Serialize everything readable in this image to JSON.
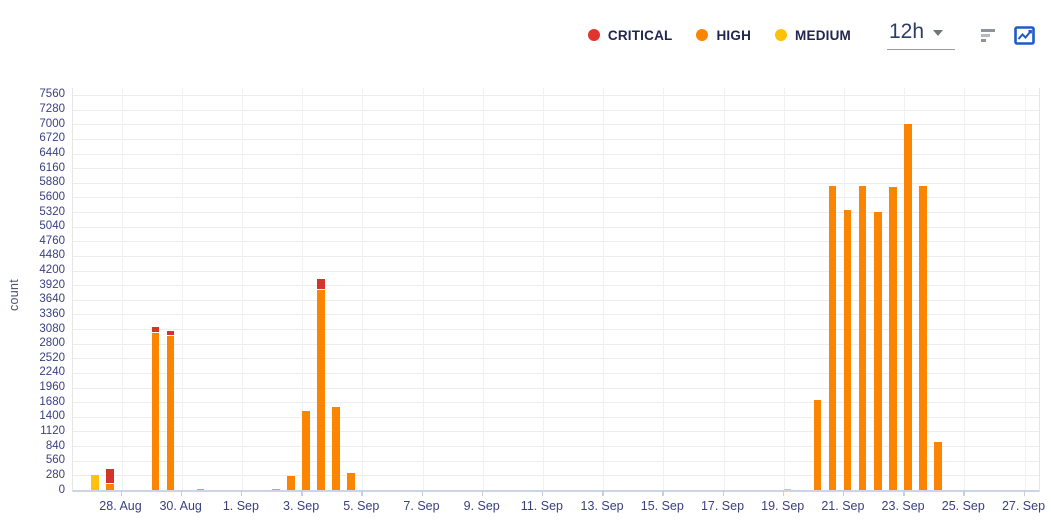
{
  "legend": {
    "items": [
      {
        "id": "critical",
        "label": "CRITICAL",
        "color": "#e0352c"
      },
      {
        "id": "high",
        "label": "HIGH",
        "color": "#fb8500"
      },
      {
        "id": "medium",
        "label": "MEDIUM",
        "color": "#fdc107"
      }
    ]
  },
  "controls": {
    "interval": "12h",
    "icons": [
      "horizontal-bars-icon",
      "line-chart-icon"
    ],
    "line_chart_icon_color": "#1b5cc7"
  },
  "colors": {
    "critical": "#d6332e",
    "high": "#fb8500",
    "medium": "#fec20d"
  },
  "chart_data": {
    "type": "bar",
    "stacked": true,
    "title": "",
    "xlabel": "",
    "ylabel": "count",
    "ylim": [
      0,
      7560
    ],
    "ytick_step": 280,
    "grid": true,
    "legend_position": "top-right",
    "interval": "12h",
    "xtick_labels": [
      "28. Aug",
      "30. Aug",
      "1. Sep",
      "3. Sep",
      "5. Sep",
      "7. Sep",
      "9. Sep",
      "11. Sep",
      "13. Sep",
      "15. Sep",
      "17. Sep",
      "19. Sep",
      "21. Sep",
      "23. Sep",
      "25. Sep",
      "27. Sep"
    ],
    "series_names": [
      "CRITICAL",
      "HIGH",
      "MEDIUM"
    ],
    "bars": [
      {
        "date": "27. Aug",
        "time": "00:00",
        "slot": 0,
        "medium": 280
      },
      {
        "date": "27. Aug",
        "time": "12:00",
        "slot": 1,
        "high": 120,
        "critical": 260
      },
      {
        "date": "29. Aug",
        "time": "00:00",
        "slot": 4,
        "high": 3000,
        "critical": 100
      },
      {
        "date": "29. Aug",
        "time": "12:00",
        "slot": 5,
        "high": 2950,
        "critical": 80
      },
      {
        "date": "30. Aug",
        "time": "12:00",
        "slot": 7,
        "critical": 25
      },
      {
        "date": "2. Sep",
        "time": "00:00",
        "slot": 12,
        "critical": 25
      },
      {
        "date": "2. Sep",
        "time": "12:00",
        "slot": 13,
        "high": 270
      },
      {
        "date": "3. Sep",
        "time": "00:00",
        "slot": 14,
        "high": 1520
      },
      {
        "date": "3. Sep",
        "time": "12:00",
        "slot": 15,
        "high": 3820,
        "critical": 200
      },
      {
        "date": "4. Sep",
        "time": "00:00",
        "slot": 16,
        "high": 1580
      },
      {
        "date": "4. Sep",
        "time": "12:00",
        "slot": 17,
        "high": 330
      },
      {
        "date": "19. Sep",
        "time": "00:00",
        "slot": 46,
        "high": 25
      },
      {
        "date": "20. Sep",
        "time": "00:00",
        "slot": 48,
        "high": 1730
      },
      {
        "date": "20. Sep",
        "time": "12:00",
        "slot": 49,
        "high": 5820
      },
      {
        "date": "21. Sep",
        "time": "00:00",
        "slot": 50,
        "high": 5360
      },
      {
        "date": "21. Sep",
        "time": "12:00",
        "slot": 51,
        "high": 5820
      },
      {
        "date": "22. Sep",
        "time": "00:00",
        "slot": 52,
        "high": 5320
      },
      {
        "date": "22. Sep",
        "time": "12:00",
        "slot": 53,
        "high": 5800
      },
      {
        "date": "23. Sep",
        "time": "00:00",
        "slot": 54,
        "high": 7000
      },
      {
        "date": "23. Sep",
        "time": "12:00",
        "slot": 55,
        "high": 5820
      },
      {
        "date": "24. Sep",
        "time": "00:00",
        "slot": 56,
        "high": 920
      }
    ]
  }
}
